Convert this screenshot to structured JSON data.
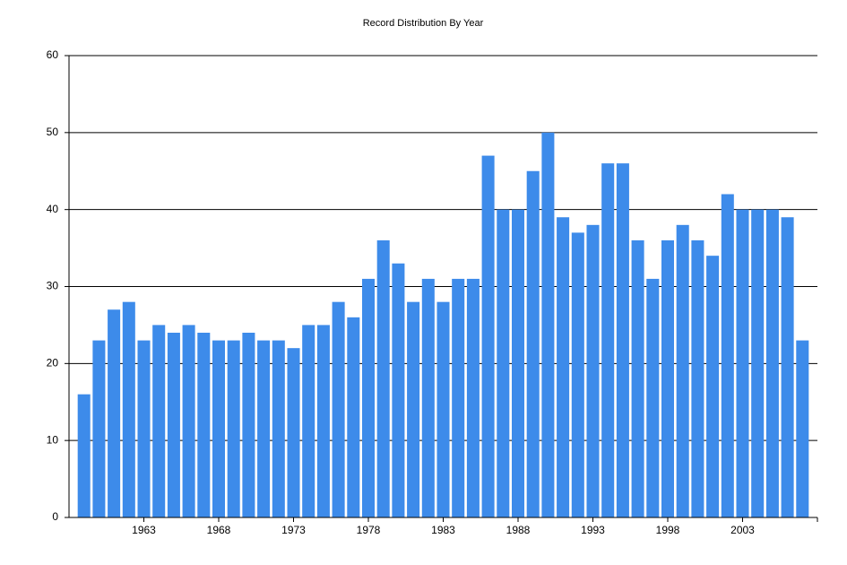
{
  "chart_data": {
    "type": "bar",
    "title": "Record Distribution By Year",
    "categories": [
      null,
      null,
      null,
      null,
      "1963",
      null,
      null,
      null,
      null,
      "1968",
      null,
      null,
      null,
      null,
      "1973",
      null,
      null,
      null,
      null,
      "1978",
      null,
      null,
      null,
      null,
      "1983",
      null,
      null,
      null,
      null,
      "1988",
      null,
      null,
      null,
      null,
      "1993",
      null,
      null,
      null,
      null,
      "1998",
      null,
      null,
      null,
      null,
      "2003",
      null,
      null,
      null,
      null
    ],
    "values": [
      16,
      23,
      27,
      28,
      23,
      25,
      24,
      25,
      24,
      23,
      23,
      24,
      23,
      23,
      22,
      25,
      25,
      28,
      26,
      31,
      36,
      33,
      28,
      31,
      28,
      31,
      31,
      47,
      40,
      40,
      45,
      50,
      39,
      37,
      38,
      46,
      46,
      36,
      31,
      36,
      38,
      36,
      34,
      42,
      40,
      40,
      40,
      39,
      23
    ],
    "color": "#3d8bea",
    "ylim": [
      0,
      60
    ],
    "yticks": [
      0,
      10,
      20,
      30,
      40,
      50,
      60
    ],
    "grid": true
  }
}
